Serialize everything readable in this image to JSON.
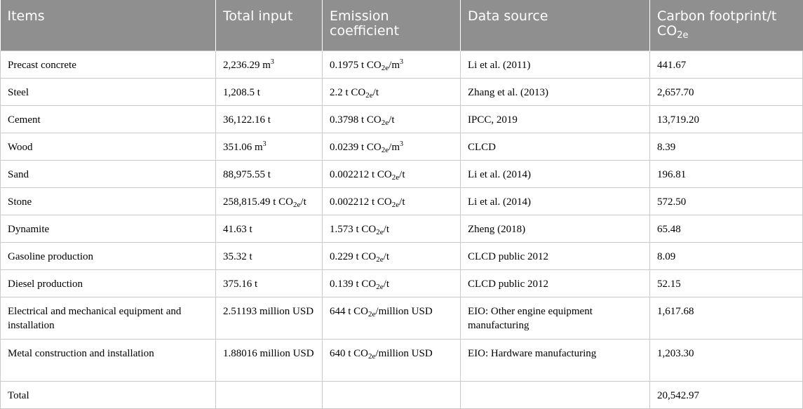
{
  "table": {
    "headers": [
      {
        "text": "Items"
      },
      {
        "text": "Total input"
      },
      {
        "text": "Emission coefficient"
      },
      {
        "text": "Data source"
      },
      {
        "text": "Carbon footprint/t CO",
        "sub": "2e"
      }
    ],
    "rows": [
      {
        "item": "Precast concrete",
        "input": {
          "text": "2,236.29 m",
          "sup": "3"
        },
        "coef": {
          "pre": "0.1975 t CO",
          "sub": "2e",
          "post": "/m",
          "sup": "3"
        },
        "source": "Li et al. (2011)",
        "footprint": "441.67"
      },
      {
        "item": "Steel",
        "input": {
          "text": "1,208.5 t"
        },
        "coef": {
          "pre": "2.2 t CO",
          "sub": "2e",
          "post": "/t"
        },
        "source": "Zhang et al. (2013)",
        "footprint": "2,657.70"
      },
      {
        "item": "Cement",
        "input": {
          "text": "36,122.16 t"
        },
        "coef": {
          "pre": "0.3798 t CO",
          "sub": "2e",
          "post": "/t"
        },
        "source": "IPCC, 2019",
        "footprint": "13,719.20"
      },
      {
        "item": "Wood",
        "input": {
          "text": "351.06 m",
          "sup": "3"
        },
        "coef": {
          "pre": "0.0239 t CO",
          "sub": "2e",
          "post": "/m",
          "sup": "3"
        },
        "source": "CLCD",
        "footprint": "8.39"
      },
      {
        "item": "Sand",
        "input": {
          "text": "88,975.55 t"
        },
        "coef": {
          "pre": "0.002212 t CO",
          "sub": "2e",
          "post": "/t"
        },
        "source": "Li et al. (2014)",
        "footprint": "196.81"
      },
      {
        "item": "Stone",
        "input": {
          "text": "258,815.49 t CO",
          "sub": "2e",
          "post": "/t"
        },
        "coef": {
          "pre": "0.002212 t CO",
          "sub": "2e",
          "post": "/t"
        },
        "source": "Li et al. (2014)",
        "footprint": "572.50"
      },
      {
        "item": "Dynamite",
        "input": {
          "text": "41.63 t"
        },
        "coef": {
          "pre": "1.573 t CO",
          "sub": "2e",
          "post": "/t"
        },
        "source": "Zheng (2018)",
        "footprint": "65.48"
      },
      {
        "item": "Gasoline production",
        "input": {
          "text": "35.32 t"
        },
        "coef": {
          "pre": "0.229 t CO",
          "sub": "2e",
          "post": "/t"
        },
        "source": "CLCD public 2012",
        "footprint": "8.09"
      },
      {
        "item": "Diesel production",
        "input": {
          "text": "375.16 t"
        },
        "coef": {
          "pre": "0.139 t CO",
          "sub": "2e",
          "post": "/t"
        },
        "source": "CLCD public 2012",
        "footprint": "52.15"
      },
      {
        "item": "Electrical and mechanical equipment and installation",
        "input": {
          "text": "2.51193 million USD"
        },
        "coef": {
          "pre": "644 t CO",
          "sub": "2e",
          "post": "/million USD"
        },
        "source": "EIO: Other engine equipment manufacturing",
        "footprint": "1,617.68",
        "tall": true
      },
      {
        "item": "Metal construction and installation",
        "input": {
          "text": "1.88016 million USD"
        },
        "coef": {
          "pre": "640 t CO",
          "sub": "2e",
          "post": "/million USD"
        },
        "source": "EIO: Hardware manufacturing",
        "footprint": "1,203.30",
        "tall": true
      },
      {
        "item": "Total",
        "input": {
          "text": ""
        },
        "coef": {
          "pre": ""
        },
        "source": "",
        "footprint": "20,542.97"
      }
    ]
  },
  "colors": {
    "header_bg": "#8f8f8f",
    "header_text": "#ffffff",
    "grid": "#c9c9c9"
  }
}
